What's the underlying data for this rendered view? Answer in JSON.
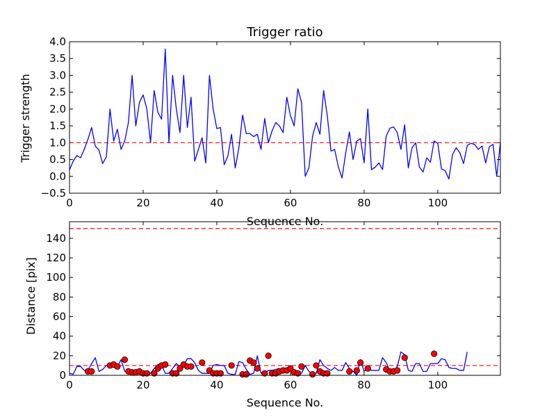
{
  "chart_data": [
    {
      "type": "line",
      "title": "Trigger ratio",
      "xlabel": "Sequence No.",
      "ylabel": "Trigger strength",
      "xlim": [
        0,
        117
      ],
      "ylim": [
        -0.5,
        4.0
      ],
      "xticks": [
        0,
        20,
        40,
        60,
        80,
        100
      ],
      "yticks": [
        "−0.5",
        "0.0",
        "0.5",
        "1.0",
        "1.5",
        "2.0",
        "2.5",
        "3.0",
        "3.5",
        "4.0"
      ],
      "ytick_values": [
        -0.5,
        0.0,
        0.5,
        1.0,
        1.5,
        2.0,
        2.5,
        3.0,
        3.5,
        4.0
      ],
      "line_color": "#0000ff",
      "threshold": 1.0,
      "threshold_color": "#ff0000",
      "series": [
        {
          "values": [
            0.2,
            0.45,
            0.62,
            0.55,
            0.8,
            1.1,
            1.45,
            0.9,
            0.78,
            0.38,
            0.58,
            2.0,
            1.05,
            1.4,
            0.8,
            1.05,
            1.6,
            3.0,
            1.5,
            2.2,
            2.42,
            2.0,
            1.0,
            2.55,
            1.9,
            1.7,
            3.78,
            1.0,
            3.0,
            2.0,
            1.3,
            3.0,
            1.45,
            2.35,
            0.45,
            0.8,
            1.15,
            0.4,
            3.0,
            2.0,
            1.42,
            1.45,
            0.35,
            0.6,
            1.25,
            0.25,
            0.85,
            1.82,
            1.27,
            1.27,
            1.18,
            1.25,
            0.8,
            1.72,
            1.0,
            1.35,
            1.6,
            1.5,
            1.3,
            2.35,
            1.8,
            1.5,
            2.6,
            2.2,
            0.0,
            0.25,
            1.2,
            1.6,
            1.25,
            2.55,
            1.8,
            0.75,
            0.8,
            0.28,
            -0.05,
            0.7,
            1.32,
            0.5,
            1.05,
            1.12,
            0.4,
            2.0,
            0.2,
            0.27,
            0.4,
            0.2,
            1.2,
            1.43,
            1.47,
            1.3,
            0.8,
            1.53,
            0.25,
            0.85,
            1.0,
            0.28,
            0.13,
            0.55,
            0.42,
            1.05,
            0.98,
            0.22,
            0.17,
            -0.08,
            0.65,
            0.85,
            0.7,
            0.38,
            0.92,
            0.98,
            0.95,
            0.8,
            0.9,
            0.4,
            0.88,
            0.95,
            0.0,
            1.0
          ]
        }
      ]
    },
    {
      "type": "line",
      "title": "",
      "xlabel": "Sequence No.",
      "ylabel": "Distance [pix]",
      "xlim": [
        0,
        117
      ],
      "ylim": [
        0,
        157
      ],
      "xticks": [
        0,
        20,
        40,
        60,
        80,
        100
      ],
      "yticks": [
        0,
        20,
        40,
        60,
        80,
        100,
        120,
        140
      ],
      "line_color": "#0000ff",
      "marker_color": "#ff0000",
      "thresholds": [
        150,
        10
      ],
      "threshold_color": "#ff0000",
      "series": [
        {
          "values": [
            2,
            1,
            9,
            9,
            5,
            5,
            12,
            18,
            4,
            6,
            10,
            11,
            8,
            9,
            16,
            4,
            3,
            3,
            4,
            3,
            2,
            3,
            2,
            7,
            11,
            11,
            2,
            2,
            7,
            12,
            9,
            10,
            17,
            17,
            13,
            5,
            2,
            2,
            2,
            10,
            11,
            10,
            10,
            2,
            1,
            1,
            14,
            13,
            6,
            1,
            2,
            20,
            2,
            2,
            5,
            5,
            6,
            7,
            4,
            4,
            9,
            2,
            1,
            2,
            10,
            4,
            2,
            2,
            16,
            10,
            7,
            5,
            8,
            5,
            5,
            13,
            7,
            4,
            0,
            16,
            4,
            8,
            5,
            5,
            5,
            18,
            13,
            4,
            4,
            9,
            24,
            21,
            5,
            4,
            12,
            12,
            4,
            4,
            12,
            12,
            12,
            17,
            16,
            8,
            7,
            7,
            5,
            5,
            24
          ]
        }
      ],
      "markers": [
        {
          "x": 5,
          "y": 4
        },
        {
          "x": 6,
          "y": 4
        },
        {
          "x": 11,
          "y": 10
        },
        {
          "x": 12,
          "y": 11
        },
        {
          "x": 13,
          "y": 9
        },
        {
          "x": 15,
          "y": 16
        },
        {
          "x": 16,
          "y": 4
        },
        {
          "x": 17,
          "y": 3
        },
        {
          "x": 18,
          "y": 3
        },
        {
          "x": 19,
          "y": 4
        },
        {
          "x": 20,
          "y": 2
        },
        {
          "x": 21,
          "y": 2
        },
        {
          "x": 23,
          "y": 2
        },
        {
          "x": 24,
          "y": 7
        },
        {
          "x": 25,
          "y": 10
        },
        {
          "x": 26,
          "y": 11
        },
        {
          "x": 28,
          "y": 2
        },
        {
          "x": 29,
          "y": 2
        },
        {
          "x": 30,
          "y": 7
        },
        {
          "x": 31,
          "y": 11
        },
        {
          "x": 32,
          "y": 9
        },
        {
          "x": 33,
          "y": 9
        },
        {
          "x": 36,
          "y": 13
        },
        {
          "x": 38,
          "y": 5
        },
        {
          "x": 39,
          "y": 2
        },
        {
          "x": 40,
          "y": 2
        },
        {
          "x": 41,
          "y": 2
        },
        {
          "x": 44,
          "y": 10
        },
        {
          "x": 47,
          "y": 1
        },
        {
          "x": 48,
          "y": 1
        },
        {
          "x": 49,
          "y": 15
        },
        {
          "x": 50,
          "y": 13
        },
        {
          "x": 51,
          "y": 7
        },
        {
          "x": 53,
          "y": 2
        },
        {
          "x": 54,
          "y": 20
        },
        {
          "x": 55,
          "y": 2
        },
        {
          "x": 56,
          "y": 2
        },
        {
          "x": 57,
          "y": 4
        },
        {
          "x": 58,
          "y": 5
        },
        {
          "x": 59,
          "y": 5
        },
        {
          "x": 60,
          "y": 7
        },
        {
          "x": 61,
          "y": 3
        },
        {
          "x": 62,
          "y": 2
        },
        {
          "x": 63,
          "y": 9
        },
        {
          "x": 66,
          "y": 1
        },
        {
          "x": 67,
          "y": 10
        },
        {
          "x": 68,
          "y": 4
        },
        {
          "x": 69,
          "y": 2
        },
        {
          "x": 70,
          "y": 2
        },
        {
          "x": 76,
          "y": 4
        },
        {
          "x": 78,
          "y": 5
        },
        {
          "x": 79,
          "y": 13
        },
        {
          "x": 81,
          "y": 7
        },
        {
          "x": 86,
          "y": 6
        },
        {
          "x": 87,
          "y": 4
        },
        {
          "x": 88,
          "y": 4
        },
        {
          "x": 89,
          "y": 5
        },
        {
          "x": 91,
          "y": 18
        },
        {
          "x": 99,
          "y": 22
        }
      ]
    }
  ]
}
